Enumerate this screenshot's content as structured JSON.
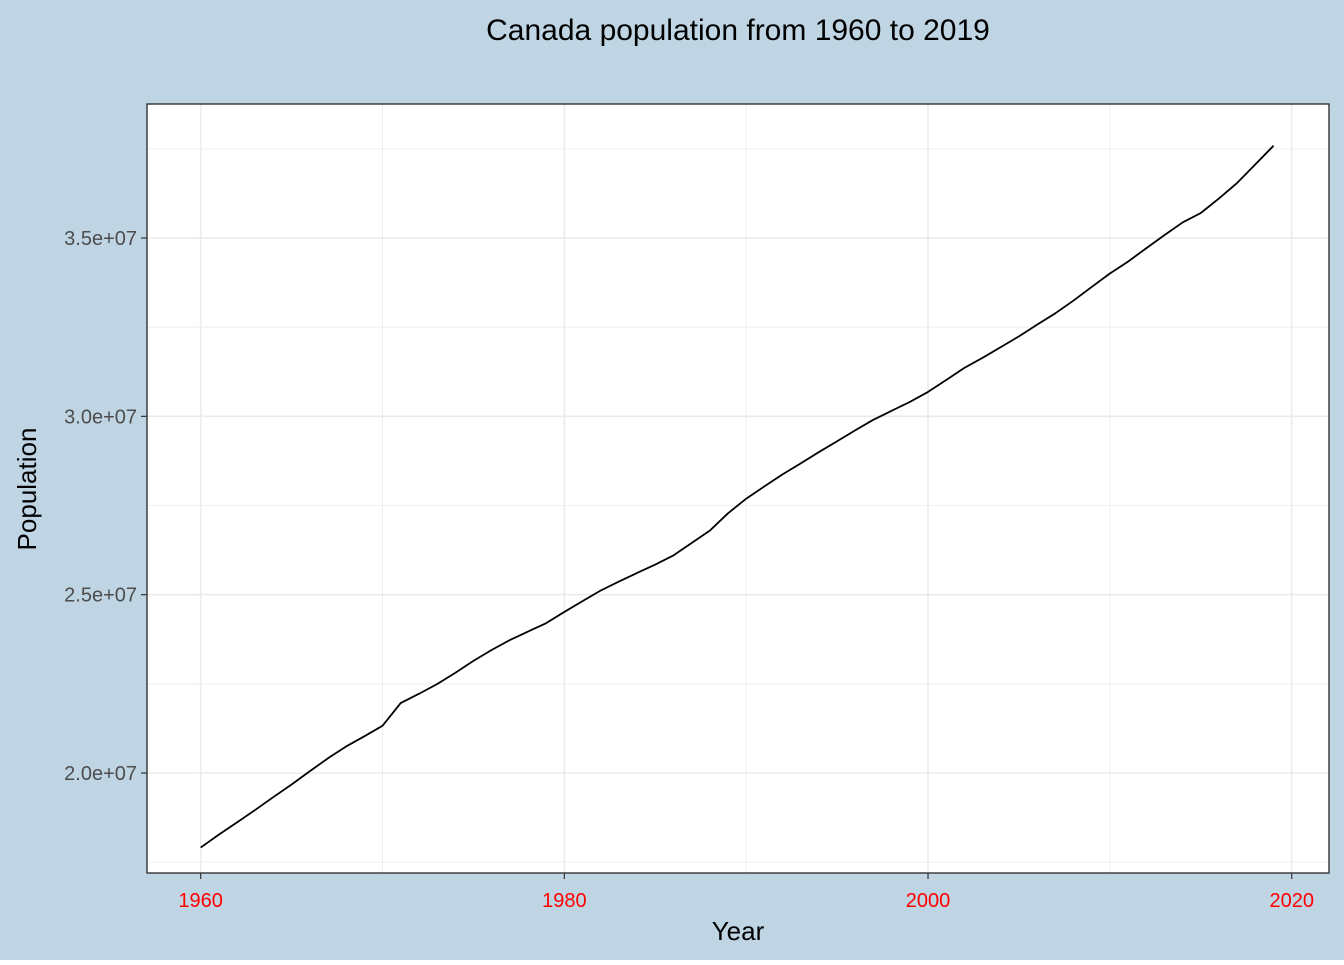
{
  "colors": {
    "background": "#bfd5e4",
    "panel": "#ffffff",
    "grid": "#ebebeb",
    "line": "#000000",
    "x_tick_label": "#ff0000",
    "y_tick_label": "#4d4d4d",
    "text": "#000000"
  },
  "chart_data": {
    "type": "line",
    "title": "Canada population from 1960 to 2019",
    "xlabel": "Year",
    "ylabel": "Population",
    "xlim": [
      1957.05,
      2022.05
    ],
    "ylim": [
      17196000,
      38758000
    ],
    "x_ticks": [
      1960,
      1980,
      2000,
      2020
    ],
    "x_tick_labels": [
      "1960",
      "1980",
      "2000",
      "2020"
    ],
    "y_ticks": [
      20000000,
      25000000,
      30000000,
      35000000
    ],
    "y_tick_labels": [
      "2.0e+07",
      "2.5e+07",
      "3.0e+07",
      "3.5e+07"
    ],
    "grid": true,
    "legend": "none",
    "series": [
      {
        "x": [
          1960,
          1961,
          1962,
          1963,
          1964,
          1965,
          1966,
          1967,
          1968,
          1969,
          1970,
          1971,
          1972,
          1973,
          1974,
          1975,
          1976,
          1977,
          1978,
          1979,
          1980,
          1981,
          1982,
          1983,
          1984,
          1985,
          1986,
          1987,
          1988,
          1989,
          1990,
          1991,
          1992,
          1993,
          1994,
          1995,
          1996,
          1997,
          1998,
          1999,
          2000,
          2001,
          2002,
          2003,
          2004,
          2005,
          2006,
          2007,
          2008,
          2009,
          2010,
          2011,
          2012,
          2013,
          2014,
          2015,
          2016,
          2017,
          2018,
          2019
        ],
        "values": [
          17909000,
          18271000,
          18614000,
          18964000,
          19325000,
          19678000,
          20048000,
          20412000,
          20744000,
          21028000,
          21324000,
          21962000,
          22219000,
          22492000,
          22808000,
          23143000,
          23449000,
          23726000,
          23964000,
          24202000,
          24516000,
          24820000,
          25117000,
          25367000,
          25608000,
          25843000,
          26101000,
          26450000,
          26795000,
          27282000,
          27691000,
          28037000,
          28372000,
          28682000,
          28999000,
          29302000,
          29611000,
          29906000,
          30157000,
          30404000,
          30685000,
          31020000,
          31360000,
          31642000,
          31941000,
          32243000,
          32571000,
          32889000,
          33247000,
          33628000,
          34005000,
          34339000,
          34714000,
          35082000,
          35437000,
          35702000,
          36109000,
          36545000,
          37065000,
          37589000
        ]
      }
    ]
  }
}
